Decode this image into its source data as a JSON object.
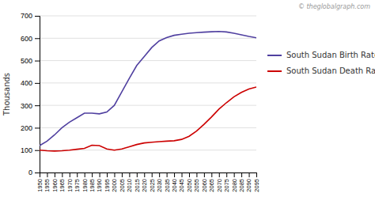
{
  "chart_data": {
    "type": "line",
    "x": [
      1950,
      1955,
      1960,
      1965,
      1970,
      1975,
      1980,
      1985,
      1990,
      1995,
      2000,
      2005,
      2010,
      2015,
      2020,
      2025,
      2030,
      2035,
      2040,
      2045,
      2050,
      2055,
      2060,
      2065,
      2070,
      2075,
      2080,
      2085,
      2090,
      2095
    ],
    "series": [
      {
        "name": "South Sudan Birth Rate",
        "color": "#5040a0",
        "values": [
          120,
          140,
          168,
          200,
          225,
          245,
          265,
          265,
          262,
          270,
          300,
          360,
          420,
          478,
          518,
          558,
          588,
          603,
          613,
          618,
          622,
          625,
          627,
          629,
          630,
          628,
          622,
          615,
          608,
          602
        ]
      },
      {
        "name": "South Sudan Death Rate",
        "color": "#cc0000",
        "values": [
          100,
          97,
          96,
          97,
          100,
          104,
          108,
          122,
          120,
          105,
          100,
          105,
          115,
          125,
          132,
          135,
          138,
          140,
          142,
          148,
          162,
          185,
          215,
          248,
          283,
          312,
          338,
          358,
          373,
          382
        ]
      }
    ],
    "ylabel": "Thousands",
    "ylim": [
      0,
      700
    ],
    "yticks": [
      0,
      100,
      200,
      300,
      400,
      500,
      600,
      700
    ],
    "xlim": [
      1950,
      2095
    ],
    "xticks": [
      1950,
      1955,
      1960,
      1965,
      1970,
      1975,
      1980,
      1985,
      1990,
      1995,
      2000,
      2005,
      2010,
      2015,
      2020,
      2025,
      2030,
      2035,
      2040,
      2045,
      2050,
      2055,
      2060,
      2065,
      2070,
      2075,
      2080,
      2085,
      2090,
      2095
    ],
    "grid": true,
    "legend": "right",
    "annotations": [
      "© theglobalgraph.com"
    ]
  }
}
